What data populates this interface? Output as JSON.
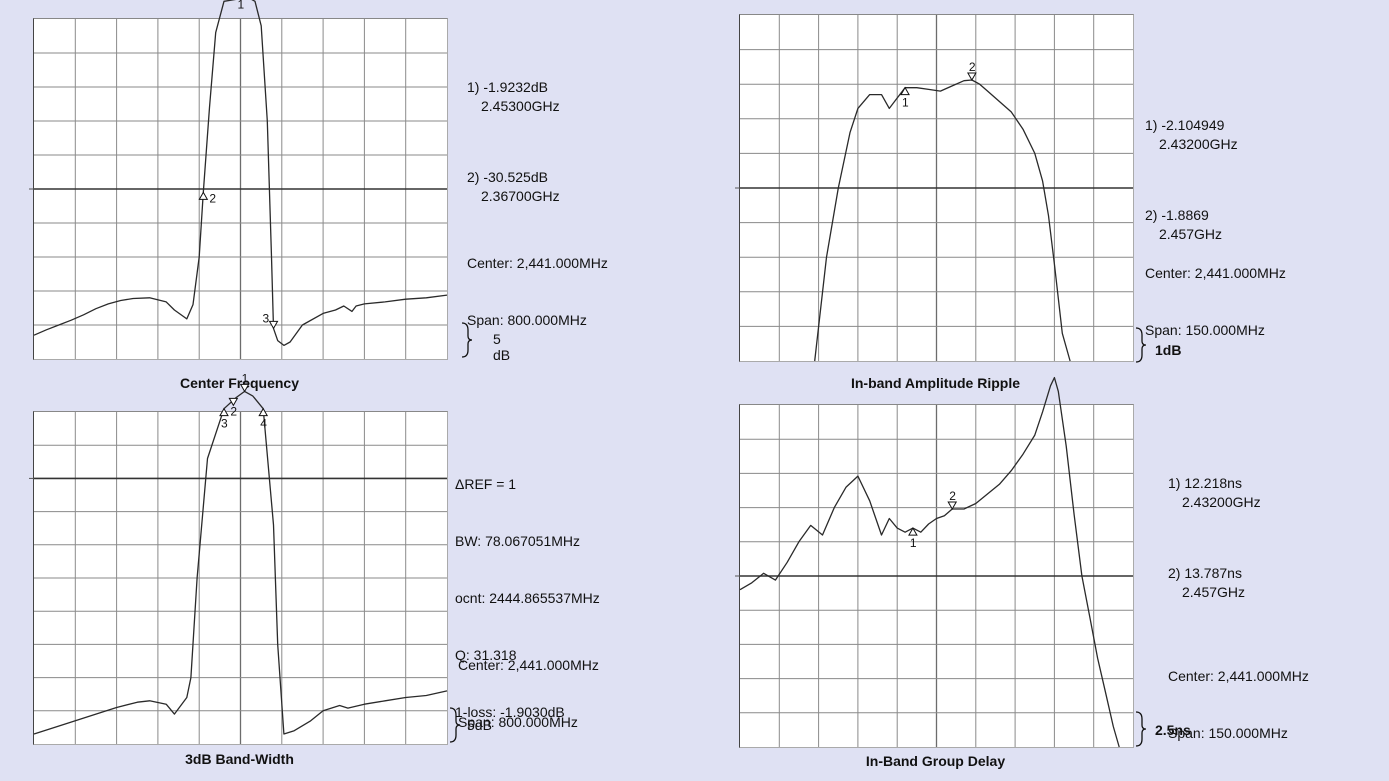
{
  "chart_data": [
    {
      "type": "line",
      "id": "cf",
      "title": "Center Frequency",
      "scale_label": "5 dB",
      "markers": [
        {
          "label": "1",
          "value": "-1.9232dB",
          "freq": "2.45300GHz"
        },
        {
          "label": "2",
          "value": "-30.525dB",
          "freq": "2.36700GHz"
        },
        {
          "label": "3"
        }
      ],
      "center": "Center: 2,441.000MHz",
      "span": "Span: 800.000MHz",
      "x_divisions": 10,
      "y_divisions": 10,
      "ref_division": 5,
      "trace_x": [
        0,
        0.3,
        0.6,
        0.9,
        1.2,
        1.5,
        1.8,
        2.1,
        2.4,
        2.8,
        3.2,
        3.4,
        3.7,
        3.85,
        4.0,
        4.1,
        4.25,
        4.4,
        4.6,
        4.8,
        5.0,
        5.2,
        5.35,
        5.5,
        5.65,
        5.75,
        5.8,
        5.9,
        6.05,
        6.2,
        6.5,
        7.0,
        7.3,
        7.5,
        7.7,
        7.8,
        8.0,
        8.5,
        9.0,
        9.5,
        10.0
      ],
      "trace_y": [
        -51.5,
        -50.7,
        -50.0,
        -49.3,
        -48.5,
        -47.6,
        -46.9,
        -46.4,
        -46.1,
        -46.0,
        -46.6,
        -47.8,
        -49.1,
        -47.0,
        -40.0,
        -30.5,
        -18.0,
        -7.0,
        -2.4,
        -2.2,
        -2.0,
        -1.9,
        -2.4,
        -6.0,
        -20.0,
        -40.0,
        -50.5,
        -52.3,
        -53.0,
        -52.5,
        -50.0,
        -48.3,
        -47.8,
        -47.2,
        -48.0,
        -47.2,
        -46.9,
        -46.6,
        -46.2,
        -46.0,
        -45.6
      ],
      "ylim": [
        -55,
        -5
      ],
      "ylim_note": "5 dB per division"
    },
    {
      "type": "line",
      "id": "ripple",
      "title": "In-band Amplitude Ripple",
      "scale_label": "1dB",
      "markers": [
        {
          "label": "1",
          "value": "-2.104949",
          "freq": "2.43200GHz"
        },
        {
          "label": "2",
          "value": "-1.8869",
          "freq": "2.457GHz"
        }
      ],
      "center": "Center: 2,441.000MHz",
      "span": "Span: 150.000MHz",
      "x_divisions": 10,
      "y_divisions": 10,
      "ref_division": 5,
      "trace_x": [
        1.9,
        2.2,
        2.5,
        2.8,
        3.0,
        3.3,
        3.6,
        3.8,
        4.0,
        4.2,
        4.5,
        4.8,
        5.1,
        5.4,
        5.7,
        5.9,
        6.1,
        6.3,
        6.6,
        6.9,
        7.2,
        7.5,
        7.7,
        7.85,
        8.0,
        8.2,
        8.4
      ],
      "trace_y": [
        -10.0,
        -7.0,
        -5.0,
        -3.4,
        -2.7,
        -2.3,
        -2.3,
        -2.7,
        -2.4,
        -2.1,
        -2.1,
        -2.15,
        -2.2,
        -2.05,
        -1.9,
        -1.88,
        -2.0,
        -2.2,
        -2.5,
        -2.8,
        -3.3,
        -4.0,
        -4.8,
        -5.8,
        -7.2,
        -9.2,
        -10.0
      ],
      "ylim": [
        -10,
        0
      ],
      "ylim_note": "1 dB per division"
    },
    {
      "type": "line",
      "id": "bw",
      "title": "3dB Band-Width",
      "scale_label": "5dB",
      "readout": {
        "ref": "ΔREF = 1",
        "bw": "BW: 78.067051MHz",
        "cnt": "ocnt: 2444.865537MHz",
        "q": "Q: 31.318",
        "loss": "1-loss: -1.9030dB"
      },
      "markers": [
        {
          "label": "1"
        },
        {
          "label": "2"
        },
        {
          "label": "3"
        },
        {
          "label": "4"
        }
      ],
      "center": "Center: 2,441.000MHz",
      "span": "Span: 800.000MHz",
      "x_divisions": 10,
      "y_divisions": 10,
      "ref_division": 2,
      "trace_x": [
        0,
        0.5,
        1.0,
        1.5,
        2.0,
        2.5,
        2.8,
        3.2,
        3.4,
        3.7,
        3.8,
        3.95,
        4.2,
        4.6,
        4.9,
        5.1,
        5.3,
        5.55,
        5.8,
        5.9,
        6.05,
        6.3,
        6.7,
        7.0,
        7.4,
        7.6,
        8.0,
        8.5,
        9.0,
        9.5,
        10.0
      ],
      "trace_y": [
        -53.5,
        -52.5,
        -51.5,
        -50.5,
        -49.5,
        -48.7,
        -48.5,
        -49.0,
        -50.5,
        -48.0,
        -45.0,
        -30.0,
        -12.0,
        -4.5,
        -2.8,
        -1.9,
        -2.6,
        -4.5,
        -22.0,
        -40.0,
        -53.5,
        -53.0,
        -51.5,
        -50.0,
        -49.2,
        -49.6,
        -49.0,
        -48.5,
        -48.0,
        -47.7,
        -47.0
      ],
      "ylim": [
        -55,
        -5
      ],
      "ylim_note": "5 dB per division"
    },
    {
      "type": "line",
      "id": "gd",
      "title": "In-Band Group Delay",
      "scale_label": "2.5ns",
      "markers": [
        {
          "label": "1",
          "value": "12.218ns",
          "freq": "2.43200GHz"
        },
        {
          "label": "2",
          "value": "13.787ns",
          "freq": "2.457GHz"
        }
      ],
      "center": "Center: 2,441.000MHz",
      "span": "Span: 150.000MHz",
      "x_divisions": 10,
      "y_divisions": 10,
      "ref_division": 5,
      "trace_x": [
        0,
        0.3,
        0.6,
        0.9,
        1.2,
        1.5,
        1.8,
        2.1,
        2.4,
        2.7,
        3.0,
        3.3,
        3.6,
        3.8,
        4.0,
        4.2,
        4.4,
        4.6,
        4.8,
        5.0,
        5.2,
        5.4,
        5.7,
        6.0,
        6.3,
        6.6,
        6.9,
        7.2,
        7.5,
        7.7,
        7.9,
        8.0,
        8.1,
        8.3,
        8.5,
        8.7,
        8.9,
        9.1,
        9.3,
        9.5,
        9.65
      ],
      "trace_y": [
        -16.5,
        -16.0,
        -15.3,
        -15.8,
        -14.5,
        -13.0,
        -11.8,
        -12.5,
        -10.5,
        -9.0,
        -8.2,
        -10.0,
        -12.5,
        -11.3,
        -12.0,
        -12.3,
        -12.0,
        -12.3,
        -11.7,
        -11.3,
        -11.1,
        -10.6,
        -10.6,
        -10.2,
        -9.5,
        -8.8,
        -7.8,
        -6.6,
        -5.2,
        -3.5,
        -1.6,
        -1.0,
        -2.0,
        -6.0,
        -11.0,
        -15.5,
        -18.5,
        -21.5,
        -24.0,
        -26.5,
        -28.0
      ],
      "ylim": [
        -28,
        -3
      ],
      "ylim_note": "2.5 ns per division"
    }
  ]
}
